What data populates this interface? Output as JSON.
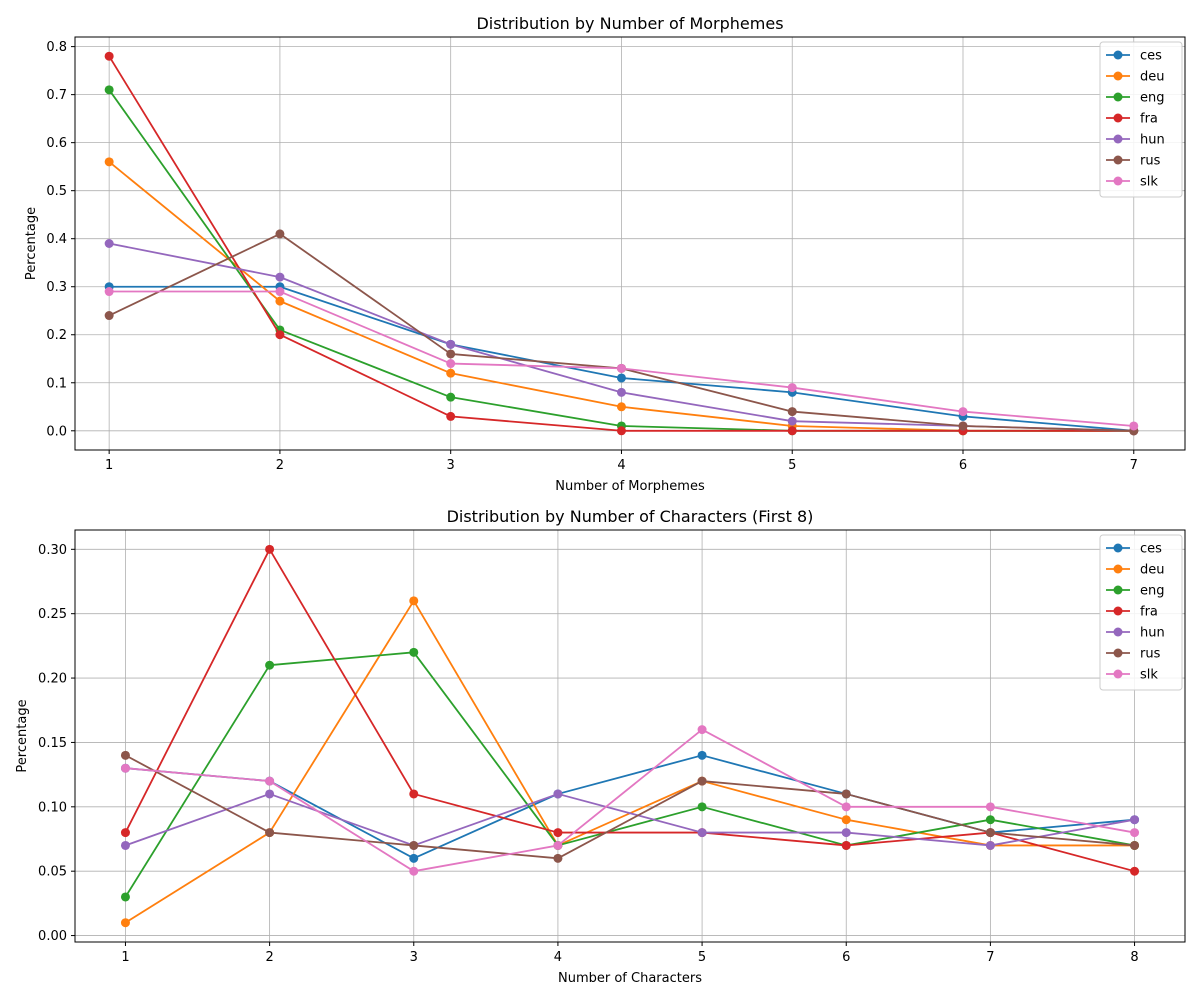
{
  "chart_data": [
    {
      "type": "line",
      "title": "Distribution by Number of Morphemes",
      "xlabel": "Number of Morphemes",
      "ylabel": "Percentage",
      "x": [
        1,
        2,
        3,
        4,
        5,
        6,
        7
      ],
      "xlim": [
        0.8,
        7.3
      ],
      "ylim": [
        -0.04,
        0.82
      ],
      "yticks": [
        0.0,
        0.1,
        0.2,
        0.3,
        0.4,
        0.5,
        0.6,
        0.7,
        0.8
      ],
      "ytick_labels": [
        "0.0",
        "0.1",
        "0.2",
        "0.3",
        "0.4",
        "0.5",
        "0.6",
        "0.7",
        "0.8"
      ],
      "xticks": [
        1,
        2,
        3,
        4,
        5,
        6,
        7
      ],
      "xtick_labels": [
        "1",
        "2",
        "3",
        "4",
        "5",
        "6",
        "7"
      ],
      "grid": true,
      "legend": "top-right",
      "series": [
        {
          "name": "ces",
          "color": "#1f77b4",
          "values": [
            0.3,
            0.3,
            0.18,
            0.11,
            0.08,
            0.03,
            0.0
          ]
        },
        {
          "name": "deu",
          "color": "#ff7f0e",
          "values": [
            0.56,
            0.27,
            0.12,
            0.05,
            0.01,
            0.0,
            0.0
          ]
        },
        {
          "name": "eng",
          "color": "#2ca02c",
          "values": [
            0.71,
            0.21,
            0.07,
            0.01,
            0.0,
            0.0,
            0.0
          ]
        },
        {
          "name": "fra",
          "color": "#d62728",
          "values": [
            0.78,
            0.2,
            0.03,
            0.0,
            0.0,
            0.0,
            0.0
          ]
        },
        {
          "name": "hun",
          "color": "#9467bd",
          "values": [
            0.39,
            0.32,
            0.18,
            0.08,
            0.02,
            0.01,
            0.0
          ]
        },
        {
          "name": "rus",
          "color": "#8c564b",
          "values": [
            0.24,
            0.41,
            0.16,
            0.13,
            0.04,
            0.01,
            0.0
          ]
        },
        {
          "name": "slk",
          "color": "#e377c2",
          "values": [
            0.29,
            0.29,
            0.14,
            0.13,
            0.09,
            0.04,
            0.01
          ]
        }
      ]
    },
    {
      "type": "line",
      "title": "Distribution by Number of Characters (First 8)",
      "xlabel": "Number of Characters",
      "ylabel": "Percentage",
      "x": [
        1,
        2,
        3,
        4,
        5,
        6,
        7,
        8
      ],
      "xlim": [
        0.65,
        8.35
      ],
      "ylim": [
        -0.005,
        0.315
      ],
      "yticks": [
        0.0,
        0.05,
        0.1,
        0.15,
        0.2,
        0.25,
        0.3
      ],
      "ytick_labels": [
        "0.00",
        "0.05",
        "0.10",
        "0.15",
        "0.20",
        "0.25",
        "0.30"
      ],
      "xticks": [
        1,
        2,
        3,
        4,
        5,
        6,
        7,
        8
      ],
      "xtick_labels": [
        "1",
        "2",
        "3",
        "4",
        "5",
        "6",
        "7",
        "8"
      ],
      "grid": true,
      "legend": "top-right",
      "series": [
        {
          "name": "ces",
          "color": "#1f77b4",
          "values": [
            0.13,
            0.12,
            0.06,
            0.11,
            0.14,
            0.11,
            0.08,
            0.09
          ]
        },
        {
          "name": "deu",
          "color": "#ff7f0e",
          "values": [
            0.01,
            0.08,
            0.26,
            0.07,
            0.12,
            0.09,
            0.07,
            0.07
          ]
        },
        {
          "name": "eng",
          "color": "#2ca02c",
          "values": [
            0.03,
            0.21,
            0.22,
            0.07,
            0.1,
            0.07,
            0.09,
            0.07
          ]
        },
        {
          "name": "fra",
          "color": "#d62728",
          "values": [
            0.08,
            0.3,
            0.11,
            0.08,
            0.08,
            0.07,
            0.08,
            0.05
          ]
        },
        {
          "name": "hun",
          "color": "#9467bd",
          "values": [
            0.07,
            0.11,
            0.07,
            0.11,
            0.08,
            0.08,
            0.07,
            0.09
          ]
        },
        {
          "name": "rus",
          "color": "#8c564b",
          "values": [
            0.14,
            0.08,
            0.07,
            0.06,
            0.12,
            0.11,
            0.08,
            0.07
          ]
        },
        {
          "name": "slk",
          "color": "#e377c2",
          "values": [
            0.13,
            0.12,
            0.05,
            0.07,
            0.16,
            0.1,
            0.1,
            0.08
          ]
        }
      ]
    }
  ]
}
